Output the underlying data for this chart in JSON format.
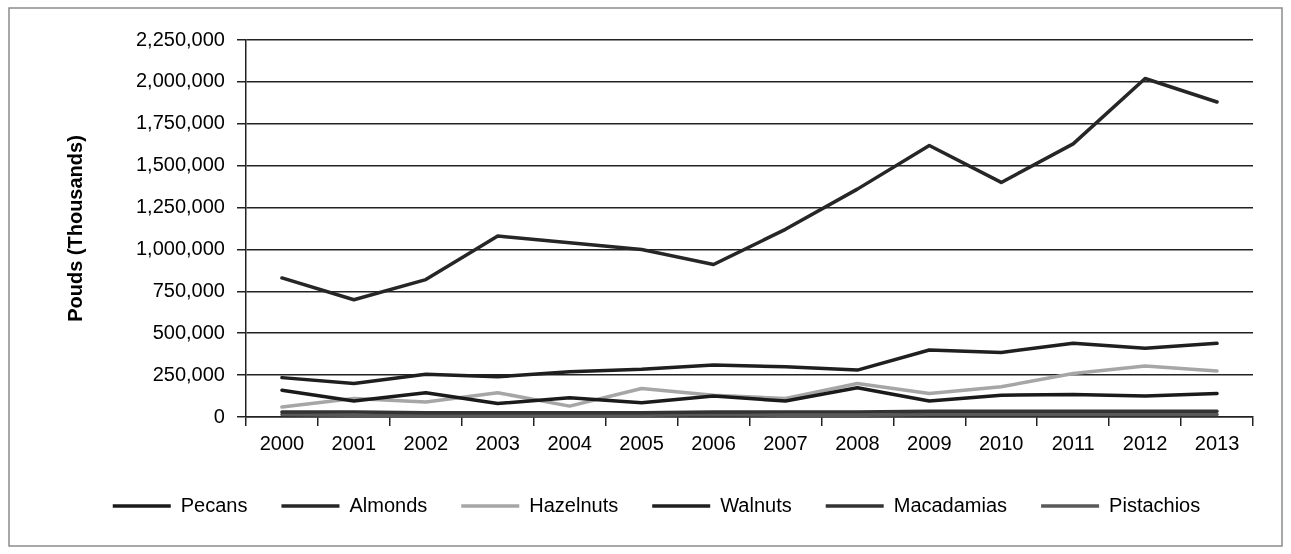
{
  "chart_data": {
    "type": "line",
    "ylabel": "Pouds (Thousands)",
    "categories": [
      "2000",
      "2001",
      "2002",
      "2003",
      "2004",
      "2005",
      "2006",
      "2007",
      "2008",
      "2009",
      "2010",
      "2011",
      "2012",
      "2013"
    ],
    "series": [
      {
        "name": "Pecans",
        "color": "#1a1a1a",
        "values": [
          160000,
          95000,
          145000,
          80000,
          115000,
          85000,
          125000,
          95000,
          175000,
          95000,
          130000,
          135000,
          125000,
          140000
        ]
      },
      {
        "name": "Almonds",
        "color": "#262626",
        "values": [
          830000,
          700000,
          820000,
          1080000,
          1040000,
          1000000,
          910000,
          1120000,
          1360000,
          1620000,
          1400000,
          1630000,
          2020000,
          1880000
        ]
      },
      {
        "name": "Hazelnuts",
        "color": "#a6a6a6",
        "values": [
          60000,
          110000,
          90000,
          145000,
          65000,
          170000,
          130000,
          110000,
          200000,
          140000,
          180000,
          260000,
          305000,
          275000
        ]
      },
      {
        "name": "Walnuts",
        "color": "#1f1f1f",
        "values": [
          235000,
          200000,
          255000,
          240000,
          270000,
          285000,
          310000,
          300000,
          280000,
          400000,
          385000,
          440000,
          410000,
          440000
        ]
      },
      {
        "name": "Macadamias",
        "color": "#333333",
        "values": [
          30000,
          30000,
          25000,
          25000,
          25000,
          25000,
          30000,
          30000,
          30000,
          35000,
          35000,
          35000,
          35000,
          35000
        ]
      },
      {
        "name": "Pistachios",
        "color": "#595959",
        "values": [
          15000,
          10000,
          10000,
          10000,
          10000,
          10000,
          15000,
          10000,
          10000,
          15000,
          15000,
          15000,
          15000,
          15000
        ]
      }
    ],
    "ylim": [
      0,
      2250000
    ],
    "yticks": [
      {
        "value": 0,
        "label": "0"
      },
      {
        "value": 250000,
        "label": "250,000"
      },
      {
        "value": 500000,
        "label": "500,000"
      },
      {
        "value": 750000,
        "label": "750,000"
      },
      {
        "value": 1000000,
        "label": "1,000,000"
      },
      {
        "value": 1250000,
        "label": "1,250,000"
      },
      {
        "value": 1500000,
        "label": "1,500,000"
      },
      {
        "value": 1750000,
        "label": "1,750,000"
      },
      {
        "value": 2000000,
        "label": "2,000,000"
      },
      {
        "value": 2250000,
        "label": "2,250,000"
      }
    ],
    "grid": "y",
    "legend": "bottom",
    "marker": "none",
    "line_style": "solid"
  }
}
